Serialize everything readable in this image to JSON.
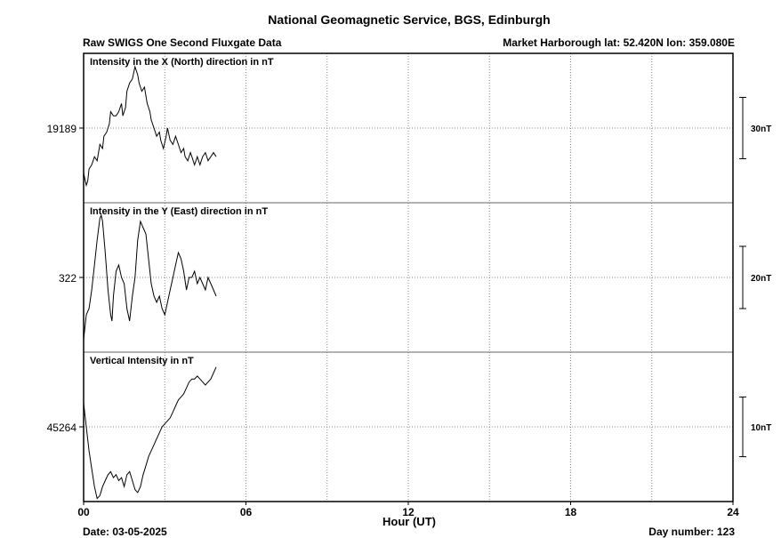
{
  "header": {
    "title": "National Geomagnetic Service, BGS, Edinburgh",
    "subtitle": "Raw SWIGS One Second Fluxgate Data",
    "location": "Market Harborough  lat: 52.420N lon: 359.080E"
  },
  "footer": {
    "date": "Date: 03-05-2025",
    "day_number": "Day number:  123"
  },
  "chart_data": {
    "type": "line",
    "xlabel": "Hour (UT)",
    "xlim": [
      0,
      24
    ],
    "x_ticks": [
      "00",
      "06",
      "12",
      "18",
      "24"
    ],
    "grid": true,
    "panels": [
      {
        "name": "Intensity in the X (North) direction in nT",
        "center_label": "19189",
        "scale_label": "30nT",
        "scale_nT": 30,
        "range_nT": 73,
        "series": {
          "x": [
            0,
            0.05,
            0.1,
            0.15,
            0.2,
            0.3,
            0.4,
            0.5,
            0.6,
            0.7,
            0.75,
            0.85,
            0.95,
            1.0,
            1.1,
            1.2,
            1.3,
            1.4,
            1.45,
            1.55,
            1.6,
            1.7,
            1.8,
            1.9,
            1.95,
            2.0,
            2.05,
            2.15,
            2.25,
            2.35,
            2.45,
            2.5,
            2.6,
            2.7,
            2.8,
            2.85,
            2.95,
            3.05,
            3.1,
            3.2,
            3.3,
            3.4,
            3.5,
            3.6,
            3.7,
            3.75,
            3.85,
            3.95,
            4.0,
            4.1,
            4.2,
            4.3,
            4.4,
            4.5,
            4.6,
            4.7,
            4.8,
            4.9
          ],
          "values": [
            -22,
            -25,
            -28,
            -26,
            -20,
            -18,
            -14,
            -16,
            -8,
            -10,
            -4,
            -2,
            2,
            8,
            6,
            6,
            8,
            12,
            6,
            10,
            18,
            22,
            24,
            30,
            28,
            26,
            22,
            18,
            20,
            12,
            8,
            4,
            0,
            -4,
            -2,
            -6,
            -10,
            -4,
            0,
            -6,
            -8,
            -4,
            -8,
            -12,
            -10,
            -14,
            -16,
            -12,
            -14,
            -18,
            -14,
            -18,
            -14,
            -12,
            -16,
            -14,
            -12,
            -14
          ]
        }
      },
      {
        "name": "Intensity in the Y (East) direction in nT",
        "center_label": "322",
        "scale_label": "20nT",
        "scale_nT": 20,
        "range_nT": 48,
        "series": {
          "x": [
            0,
            0.1,
            0.2,
            0.3,
            0.4,
            0.5,
            0.6,
            0.65,
            0.7,
            0.8,
            0.9,
            1.0,
            1.05,
            1.1,
            1.2,
            1.3,
            1.4,
            1.5,
            1.6,
            1.7,
            1.8,
            1.9,
            2.0,
            2.1,
            2.2,
            2.3,
            2.4,
            2.5,
            2.6,
            2.7,
            2.8,
            2.9,
            3.0,
            3.1,
            3.2,
            3.3,
            3.4,
            3.5,
            3.6,
            3.7,
            3.8,
            3.9,
            4.0,
            4.1,
            4.2,
            4.3,
            4.4,
            4.5,
            4.6,
            4.7,
            4.8,
            4.9
          ],
          "values": [
            -20,
            -12,
            -10,
            -4,
            4,
            12,
            19,
            20,
            18,
            8,
            -4,
            -12,
            -14,
            -6,
            2,
            4,
            0,
            -2,
            -10,
            -14,
            -6,
            0,
            12,
            18,
            16,
            14,
            6,
            -2,
            -6,
            -8,
            -6,
            -10,
            -12,
            -8,
            -4,
            0,
            4,
            8,
            6,
            2,
            -4,
            0,
            0,
            2,
            -2,
            0,
            -2,
            -4,
            0,
            -2,
            -4,
            -6
          ]
        }
      },
      {
        "name": "Vertical Intensity in nT",
        "center_label": "45264",
        "scale_label": "10nT",
        "scale_nT": 10,
        "range_nT": 25,
        "series": {
          "x": [
            0,
            0.1,
            0.2,
            0.3,
            0.4,
            0.5,
            0.6,
            0.7,
            0.8,
            0.9,
            1.0,
            1.1,
            1.2,
            1.3,
            1.4,
            1.5,
            1.6,
            1.7,
            1.8,
            1.9,
            2.0,
            2.1,
            2.2,
            2.3,
            2.4,
            2.5,
            2.6,
            2.7,
            2.8,
            2.9,
            3.0,
            3.1,
            3.2,
            3.3,
            3.4,
            3.5,
            3.6,
            3.7,
            3.8,
            3.9,
            4.0,
            4.1,
            4.2,
            4.3,
            4.4,
            4.5,
            4.6,
            4.7,
            4.8,
            4.9
          ],
          "values": [
            4,
            0,
            -4,
            -7,
            -10,
            -12,
            -11.5,
            -10,
            -9,
            -8,
            -7.5,
            -8.5,
            -8,
            -9,
            -8.5,
            -10,
            -8,
            -7.5,
            -9,
            -10.5,
            -11,
            -10,
            -8,
            -6.5,
            -5,
            -4,
            -3,
            -2,
            -1,
            0,
            0.5,
            1,
            1.5,
            2.5,
            3.5,
            4.5,
            5,
            5.5,
            6.5,
            7.5,
            8,
            8,
            8.5,
            8,
            7.5,
            7,
            7.5,
            8,
            9,
            10
          ]
        }
      }
    ]
  }
}
